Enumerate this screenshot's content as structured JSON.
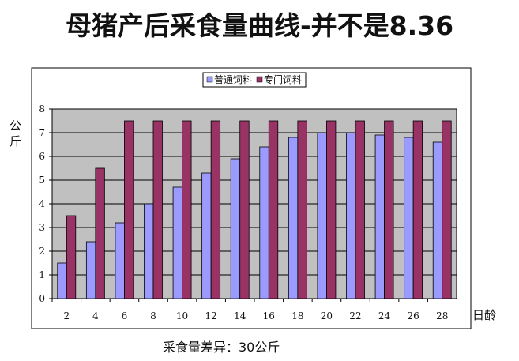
{
  "title": "母猪产后采食量曲线-并不是8.36",
  "footer": "采食量差异：30公斤",
  "colors": {
    "series1": "#9b9bff",
    "series2": "#993366",
    "plot_bg": "#c0c0c0",
    "grid": "#000000"
  },
  "chart_data": {
    "type": "bar",
    "title": "母猪产后采食量曲线-并不是8.36",
    "xlabel": "日龄",
    "ylabel": "公斤",
    "ylim": [
      0,
      8
    ],
    "yticks": [
      "0",
      "1",
      "2",
      "3",
      "4",
      "5",
      "6",
      "7",
      "8"
    ],
    "categories": [
      "2",
      "4",
      "6",
      "8",
      "10",
      "12",
      "14",
      "16",
      "18",
      "20",
      "22",
      "24",
      "26",
      "28"
    ],
    "grid": true,
    "legend_position": "top",
    "series": [
      {
        "name": "普通饲料",
        "values": [
          1.5,
          2.4,
          3.2,
          4.0,
          4.7,
          5.3,
          5.9,
          6.4,
          6.8,
          7.0,
          7.0,
          6.9,
          6.8,
          6.6
        ]
      },
      {
        "name": "专门饲料",
        "values": [
          3.5,
          5.5,
          7.5,
          7.5,
          7.5,
          7.5,
          7.5,
          7.5,
          7.5,
          7.5,
          7.5,
          7.5,
          7.5,
          7.5
        ]
      }
    ]
  }
}
